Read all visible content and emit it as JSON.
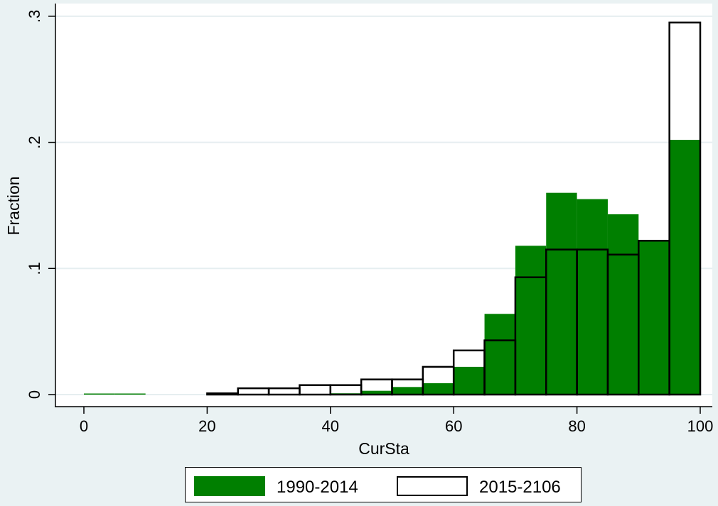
{
  "chart_data": {
    "type": "bar",
    "subtype": "overlaid-histogram",
    "xlabel": "CurSta",
    "ylabel": "Fraction",
    "xticks": [
      0,
      20,
      40,
      60,
      80,
      100
    ],
    "xtick_labels": [
      "0",
      "20",
      "40",
      "60",
      "80",
      "100"
    ],
    "yticks": [
      0,
      0.1,
      0.2,
      0.3
    ],
    "ytick_labels": [
      "0",
      ".1",
      ".2",
      ".3"
    ],
    "xlim": [
      -5,
      101
    ],
    "ylim": [
      -0.008,
      0.302
    ],
    "bin_width": 5,
    "grid": true,
    "legend_position": "bottom",
    "series": [
      {
        "name": "1990-2014",
        "style": "filled",
        "color": "#007f00",
        "bins": [
          {
            "start": 0,
            "value": 0.0005
          },
          {
            "start": 5,
            "value": 0.0005
          },
          {
            "start": 40,
            "value": 0.001
          },
          {
            "start": 45,
            "value": 0.003
          },
          {
            "start": 50,
            "value": 0.006
          },
          {
            "start": 55,
            "value": 0.009
          },
          {
            "start": 60,
            "value": 0.022
          },
          {
            "start": 65,
            "value": 0.064
          },
          {
            "start": 70,
            "value": 0.118
          },
          {
            "start": 75,
            "value": 0.16
          },
          {
            "start": 80,
            "value": 0.155
          },
          {
            "start": 85,
            "value": 0.143
          },
          {
            "start": 90,
            "value": 0.122
          },
          {
            "start": 95,
            "value": 0.202
          }
        ]
      },
      {
        "name": "2015-2106",
        "style": "outline",
        "color": "#000000",
        "bins": [
          {
            "start": 20,
            "value": 0.001
          },
          {
            "start": 25,
            "value": 0.005
          },
          {
            "start": 30,
            "value": 0.005
          },
          {
            "start": 35,
            "value": 0.0075
          },
          {
            "start": 40,
            "value": 0.0075
          },
          {
            "start": 45,
            "value": 0.012
          },
          {
            "start": 50,
            "value": 0.012
          },
          {
            "start": 55,
            "value": 0.022
          },
          {
            "start": 60,
            "value": 0.035
          },
          {
            "start": 65,
            "value": 0.043
          },
          {
            "start": 70,
            "value": 0.093
          },
          {
            "start": 75,
            "value": 0.115
          },
          {
            "start": 80,
            "value": 0.115
          },
          {
            "start": 85,
            "value": 0.111
          },
          {
            "start": 90,
            "value": 0.122
          },
          {
            "start": 95,
            "value": 0.295
          }
        ]
      }
    ]
  },
  "legend": {
    "items": [
      {
        "label": "1990-2014"
      },
      {
        "label": "2015-2106"
      }
    ]
  }
}
